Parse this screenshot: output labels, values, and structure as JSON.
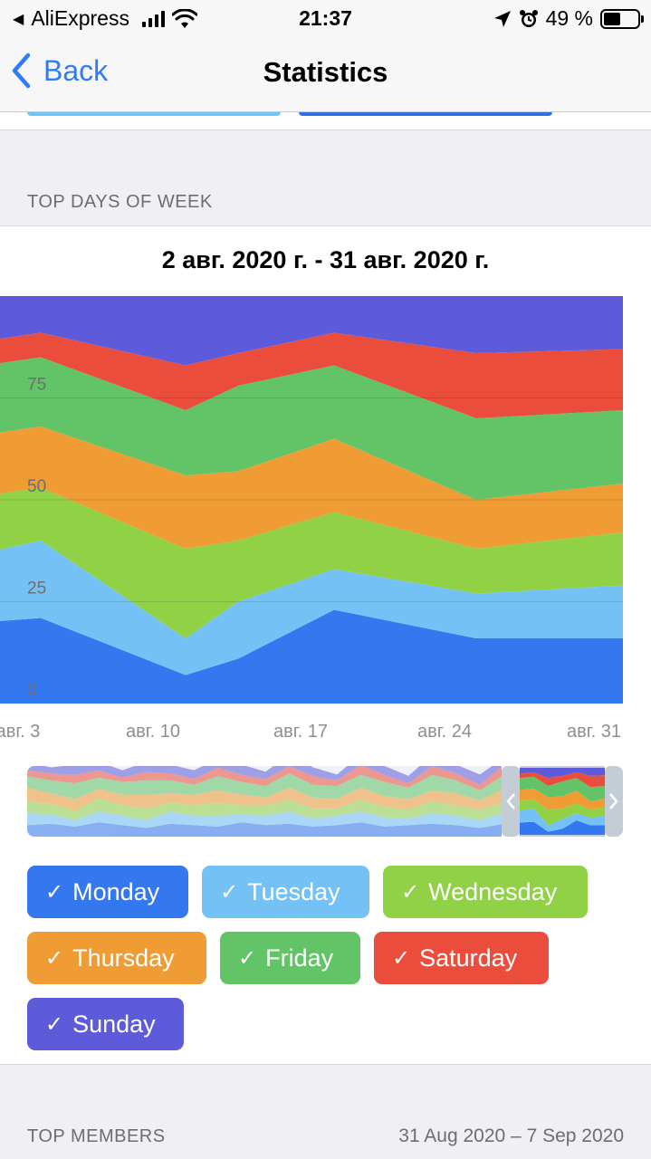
{
  "status_bar": {
    "carrier_back": "AliExpress",
    "time": "21:37",
    "battery_percent": "49 %",
    "battery_level": 0.49
  },
  "nav": {
    "back_label": "Back",
    "title": "Statistics"
  },
  "section_top_days": {
    "header": "TOP DAYS OF WEEK",
    "range_title": "2 авг. 2020 г. - 31 авг. 2020 г."
  },
  "chart_data": {
    "type": "area",
    "stacked": true,
    "title": "2 авг. 2020 г. - 31 авг. 2020 г.",
    "x_labels": [
      "авг. 3",
      "авг. 10",
      "авг. 17",
      "авг. 24",
      "авг. 31"
    ],
    "x": [
      "2 авг.",
      "3 авг.",
      "10 авг.",
      "14 авг.",
      "17 авг.",
      "24 авг.",
      "31 авг."
    ],
    "ylim": [
      0,
      100
    ],
    "y_ticks": [
      "0",
      "25",
      "50",
      "75"
    ],
    "grid": true,
    "series": [
      {
        "name": "Monday",
        "color": "#3478f0",
        "values": [
          20,
          21,
          7,
          11,
          23,
          16,
          16
        ]
      },
      {
        "name": "Tuesday",
        "color": "#74c2f5",
        "values": [
          17,
          19,
          9,
          14,
          10,
          11,
          13
        ]
      },
      {
        "name": "Wednesday",
        "color": "#90d146",
        "values": [
          14,
          13,
          22,
          15,
          14,
          11,
          13
        ]
      },
      {
        "name": "Thursday",
        "color": "#f09c34",
        "values": [
          15,
          15,
          18,
          17,
          18,
          12,
          12
        ]
      },
      {
        "name": "Friday",
        "color": "#62c466",
        "values": [
          17,
          17,
          16,
          21,
          18,
          20,
          18
        ]
      },
      {
        "name": "Saturday",
        "color": "#eb4d3d",
        "values": [
          6,
          6,
          11,
          8,
          8,
          16,
          15
        ]
      },
      {
        "name": "Sunday",
        "color": "#5e5bda",
        "values": [
          11,
          9,
          17,
          14,
          9,
          14,
          13
        ]
      }
    ]
  },
  "legend_toggles": [
    {
      "label": "Monday",
      "color": "#3478f0",
      "checked": true
    },
    {
      "label": "Tuesday",
      "color": "#74c2f5",
      "checked": true
    },
    {
      "label": "Wednesday",
      "color": "#90d146",
      "checked": true
    },
    {
      "label": "Thursday",
      "color": "#f09c34",
      "checked": true
    },
    {
      "label": "Friday",
      "color": "#62c466",
      "checked": true
    },
    {
      "label": "Saturday",
      "color": "#eb4d3d",
      "checked": true
    },
    {
      "label": "Sunday",
      "color": "#5e5bda",
      "checked": true
    }
  ],
  "check_glyph": "✓",
  "section_top_members": {
    "header": "TOP MEMBERS",
    "range": "31 Aug 2020 – 7 Sep 2020"
  },
  "icons": [
    "location-arrow-icon",
    "alarm-icon",
    "wifi-icon",
    "signal-icon",
    "battery-icon",
    "back-chevron-icon"
  ]
}
